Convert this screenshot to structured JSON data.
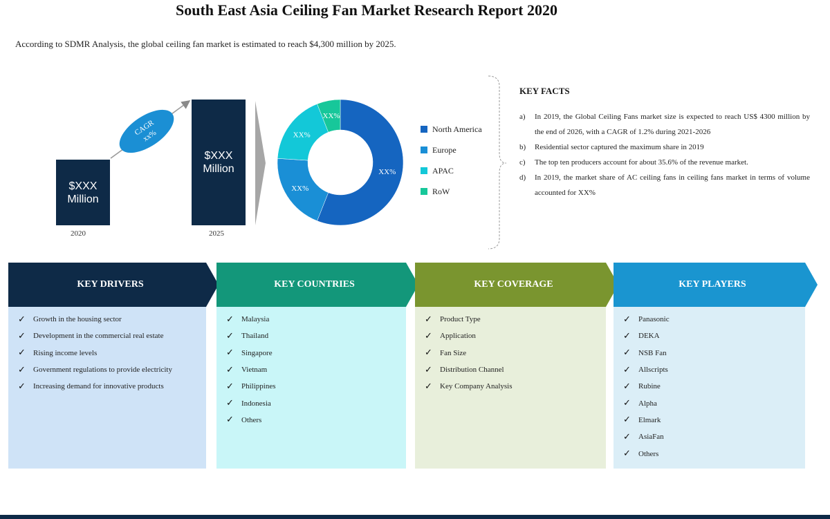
{
  "title": "South East Asia Ceiling Fan Market Research Report 2020",
  "intro": "According to SDMR Analysis, the global  ceiling fan market is estimated to reach $4,300 million by 2025.",
  "growth": {
    "bar_2020_label": "$XXX\nMillion",
    "bar_2020_line1": "$XXX",
    "bar_2020_line2": "Million",
    "bar_2025_line1": "$XXX",
    "bar_2025_line2": "Million",
    "year_2020": "2020",
    "year_2025": "2025",
    "cagr_label": "CAGR",
    "cagr_value": "xx%",
    "colors": {
      "bar": "#0e2a47",
      "cagr": "#1b8fd4"
    }
  },
  "chart_data": {
    "type": "pie",
    "donut": true,
    "categories": [
      "North America",
      "Europe",
      "APAC",
      "RoW"
    ],
    "values": [
      56,
      20,
      18,
      6
    ],
    "data_labels": [
      "XX%",
      "XX%",
      "XX%",
      "XX%"
    ],
    "colors": [
      "#1565c0",
      "#1a8fd6",
      "#13c8d8",
      "#17c79a"
    ],
    "legend_position": "right"
  },
  "key_facts": {
    "title": "KEY FACTS",
    "items": [
      {
        "marker": "a)",
        "text": "In 2019, the Global Ceiling Fans market size is expected to reach US$ 4300 million by the end of 2026, with a CAGR of 1.2% during 2021-2026"
      },
      {
        "marker": "b)",
        "text": "Residential sector captured the maximum share in 2019"
      },
      {
        "marker": "c)",
        "text": "The top ten producers account for about 35.6% of the revenue market."
      },
      {
        "marker": "d)",
        "text": "In 2019, the market share of AC ceiling fans in ceiling fans market in terms of volume accounted for XX%"
      }
    ]
  },
  "sections": [
    {
      "title": "KEY DRIVERS",
      "header_color": "#0e2a47",
      "panel_color": "#cfe3f7",
      "items": [
        "Growth in the housing sector",
        "Development in the commercial real estate",
        "Rising income levels",
        "Government regulations to provide electricity",
        "Increasing demand for innovative products"
      ]
    },
    {
      "title": "KEY COUNTRIES",
      "header_color": "#13977a",
      "panel_color": "#c9f6f8",
      "items": [
        "Malaysia",
        "Thailand",
        "Singapore",
        "Vietnam",
        "Philippines",
        "Indonesia",
        "Others"
      ]
    },
    {
      "title": "KEY COVERAGE",
      "header_color": "#7a952f",
      "panel_color": "#e8efdb",
      "items": [
        "Product Type",
        "Application",
        "Fan Size",
        "Distribution Channel",
        "Key Company Analysis"
      ]
    },
    {
      "title": "KEY PLAYERS",
      "header_color": "#1a95d0",
      "panel_color": "#dbeef7",
      "items": [
        "Panasonic",
        "DEKA",
        "NSB Fan",
        "Allscripts",
        "Rubine",
        "Alpha",
        "Elmark",
        "AsiaFan",
        "Others"
      ]
    }
  ],
  "checkmark": "✓"
}
